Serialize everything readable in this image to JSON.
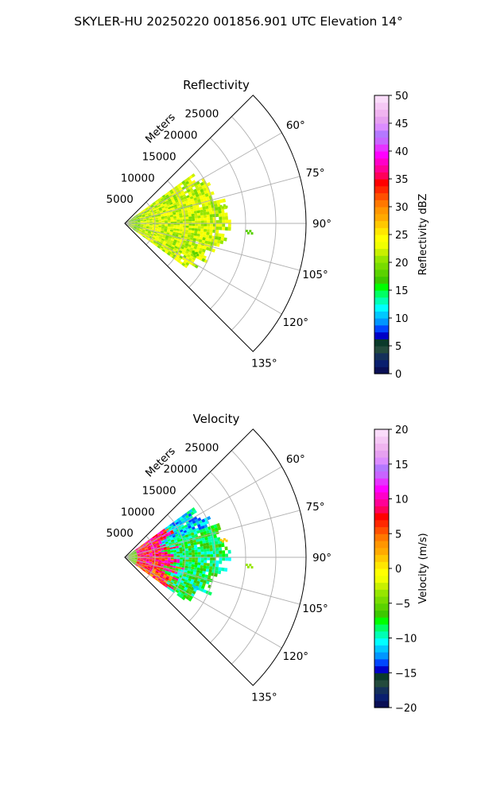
{
  "figure": {
    "title": "SKYLER-HU  20250220  001856.901 UTC Elevation 14°"
  },
  "chart_data": [
    {
      "type": "heatmap",
      "projection": "polar-sector",
      "title": "Reflectivity",
      "range_axis": {
        "label": "Meters",
        "ticks": [
          5000,
          10000,
          15000,
          20000,
          25000
        ],
        "tick_labels": [
          "5000",
          "10000",
          "15000",
          "20000",
          "25000"
        ],
        "max": 30000
      },
      "azimuth_axis": {
        "ticks": [
          60,
          75,
          90,
          105,
          120,
          135
        ],
        "tick_labels": [
          "60°",
          "75°",
          "90°",
          "105°",
          "120°",
          "135°"
        ],
        "range": [
          45,
          135
        ]
      },
      "grid": true,
      "colorbar": {
        "label": "Reflectivity dBZ",
        "range": [
          0,
          50
        ],
        "ticks": [
          0,
          5,
          10,
          15,
          20,
          25,
          30,
          35,
          40,
          45,
          50
        ],
        "tick_labels": [
          "0",
          "5",
          "10",
          "15",
          "20",
          "25",
          "30",
          "35",
          "40",
          "45",
          "50"
        ]
      },
      "field": {
        "extent_m": 17000,
        "azimuth_span": [
          54,
          125
        ],
        "typical": 22,
        "near_range": 20,
        "spread": 6,
        "far_cells": [
          {
            "az": 79,
            "r": 16000,
            "v": 20
          },
          {
            "az": 93,
            "r": 20000,
            "v": 18
          },
          {
            "az": 112,
            "r": 12000,
            "v": 18
          }
        ]
      }
    },
    {
      "type": "heatmap",
      "projection": "polar-sector",
      "title": "Velocity",
      "range_axis": {
        "label": "Meters",
        "ticks": [
          5000,
          10000,
          15000,
          20000,
          25000
        ],
        "tick_labels": [
          "5000",
          "10000",
          "15000",
          "20000",
          "25000"
        ],
        "max": 30000
      },
      "azimuth_axis": {
        "ticks": [
          60,
          75,
          90,
          105,
          120,
          135
        ],
        "tick_labels": [
          "60°",
          "75°",
          "90°",
          "105°",
          "120°",
          "135°"
        ],
        "range": [
          45,
          135
        ]
      },
      "grid": true,
      "colorbar": {
        "label": "Velocity (m/s)",
        "range": [
          -20,
          20
        ],
        "ticks": [
          -20,
          -15,
          -10,
          -5,
          0,
          5,
          10,
          15,
          20
        ],
        "tick_labels": [
          "−20",
          "−15",
          "−10",
          "−5",
          "0",
          "5",
          "10",
          "15",
          "20"
        ]
      },
      "field": {
        "extent_m": 17000,
        "azimuth_span": [
          54,
          125
        ],
        "near_range": -5,
        "inner_positive": 10,
        "outer_negative": -8,
        "transition_m": 7000,
        "far_cells": [
          {
            "az": 79,
            "r": 16000,
            "v": 1
          },
          {
            "az": 93,
            "r": 20000,
            "v": -4
          },
          {
            "az": 112,
            "r": 12000,
            "v": -12
          }
        ]
      }
    }
  ],
  "colors": {
    "grid": "#b0b0b0",
    "frame": "#000000",
    "colormap": [
      "#0a0f55",
      "#0a1f6f",
      "#14305a",
      "#234a3c",
      "#0a3a2a",
      "#0000c8",
      "#0046ff",
      "#0096ff",
      "#00c8ff",
      "#00ffff",
      "#00ffb4",
      "#00ff64",
      "#00ff00",
      "#3cc800",
      "#5ad200",
      "#78dc00",
      "#96e600",
      "#c8f000",
      "#f0ff00",
      "#ffff00",
      "#ffe600",
      "#ffc800",
      "#ffaa00",
      "#ff9600",
      "#ff7800",
      "#ff5000",
      "#ff2800",
      "#ff0000",
      "#ff005a",
      "#ff0096",
      "#ff00c8",
      "#ff00ff",
      "#e632ff",
      "#c864ff",
      "#b478ff",
      "#dc8cff",
      "#e6a0f0",
      "#f0b4f0",
      "#f5c8f5",
      "#fadcfa"
    ]
  }
}
